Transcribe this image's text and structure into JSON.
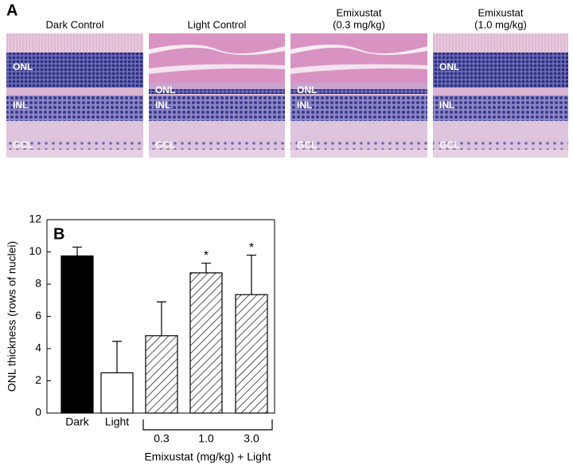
{
  "panel_a": {
    "label": "A",
    "panels": [
      {
        "title": [
          "Dark Control"
        ],
        "layers": [
          "ONL",
          "INL",
          "GCL"
        ]
      },
      {
        "title": [
          "Light Control"
        ],
        "layers": [
          "ONL",
          "INL",
          "GCL"
        ]
      },
      {
        "title": [
          "Emixustat",
          "(0.3 mg/kg)"
        ],
        "layers": [
          "ONL",
          "INL",
          "GCL"
        ]
      },
      {
        "title": [
          "Emixustat",
          "(1.0 mg/kg)"
        ],
        "layers": [
          "ONL",
          "INL",
          "GCL"
        ]
      }
    ]
  },
  "chart_data": {
    "type": "bar",
    "panel_label": "B",
    "y_label": "ONL thickness (rows of nuclei)",
    "group_label": "Emixustat (mg/kg) + Light",
    "categories": [
      "Dark",
      "Light",
      "0.3",
      "1.0",
      "3.0"
    ],
    "values": [
      9.75,
      2.5,
      4.8,
      8.7,
      7.35
    ],
    "errors": [
      0.55,
      1.95,
      2.1,
      0.6,
      2.45
    ],
    "value_labels": [
      null,
      null,
      null,
      "*",
      "*"
    ],
    "colors": [
      "#000000",
      "#ffffff",
      "#ffffff",
      "#ffffff",
      "#ffffff"
    ],
    "hatched": [
      false,
      false,
      true,
      true,
      true
    ],
    "ylim": [
      0,
      12
    ],
    "yticks": [
      0,
      2,
      4,
      6,
      8,
      10,
      12
    ]
  }
}
